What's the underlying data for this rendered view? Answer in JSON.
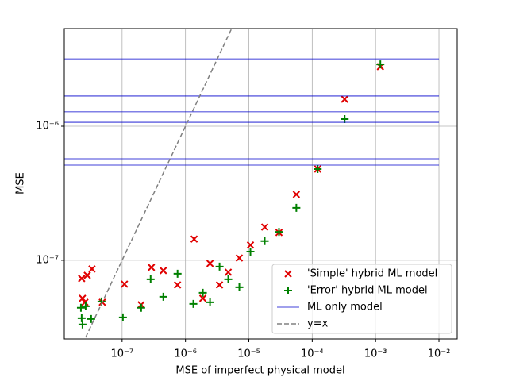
{
  "chart_data": {
    "type": "scatter",
    "x_label": "MSE of imperfect physical model",
    "y_label": "MSE",
    "log_x": true,
    "log_y": true,
    "grid": true,
    "legend": "lower right",
    "xlim": [
      1.224e-08,
      0.0194
    ],
    "ylim": [
      2.59e-08,
      5.35e-06
    ],
    "xticks": [
      {
        "value": 1e-07,
        "label": "10⁻⁷"
      },
      {
        "value": 1e-06,
        "label": "10⁻⁶"
      },
      {
        "value": 1e-05,
        "label": "10⁻⁵"
      },
      {
        "value": 0.0001,
        "label": "10⁻⁴"
      },
      {
        "value": 0.001,
        "label": "10⁻³"
      },
      {
        "value": 0.01,
        "label": "10⁻²"
      }
    ],
    "yticks": [
      {
        "value": 1e-07,
        "label": "10⁻⁷"
      },
      {
        "value": 1e-06,
        "label": "10⁻⁶"
      }
    ],
    "series": [
      {
        "name": "'Simple' hybrid ML model",
        "color": "#e00000",
        "marker": "x",
        "x": [
          2.3e-08,
          2.37e-08,
          2.59e-08,
          2.82e-08,
          3.35e-08,
          4.87e-08,
          1.09e-07,
          2e-07,
          2.9e-07,
          4.47e-07,
          7.5e-07,
          1.37e-06,
          1.88e-06,
          2.44e-06,
          3.45e-06,
          4.73e-06,
          7.08e-06,
          1.06e-05,
          1.78e-05,
          2.99e-05,
          5.62e-05,
          0.000122,
          0.000325,
          0.00119
        ],
        "values": [
          7.31e-08,
          5.2e-08,
          4.86e-08,
          7.72e-08,
          8.61e-08,
          4.86e-08,
          6.64e-08,
          4.66e-08,
          8.85e-08,
          8.38e-08,
          6.55e-08,
          1.44e-07,
          5.2e-08,
          9.47e-08,
          6.55e-08,
          8.15e-08,
          1.04e-07,
          1.3e-07,
          1.77e-07,
          1.61e-07,
          3.1e-07,
          4.79e-07,
          1.59e-06,
          2.78e-06
        ]
      },
      {
        "name": "'Error' hybrid ML model",
        "color": "#008000",
        "marker": "+",
        "x": [
          2.24e-08,
          2.3e-08,
          2.37e-08,
          2.66e-08,
          3.25e-08,
          4.73e-08,
          1.03e-07,
          2e-07,
          2.82e-07,
          4.47e-07,
          7.5e-07,
          1.33e-06,
          1.88e-06,
          2.44e-06,
          3.45e-06,
          4.73e-06,
          7.08e-06,
          1.06e-05,
          1.78e-05,
          2.99e-05,
          5.62e-05,
          0.000122,
          0.000325,
          0.00119
        ],
        "values": [
          4.42e-08,
          3.7e-08,
          3.32e-08,
          4.54e-08,
          3.65e-08,
          4.92e-08,
          3.75e-08,
          4.42e-08,
          7.21e-08,
          5.34e-08,
          7.93e-08,
          4.73e-08,
          5.72e-08,
          4.86e-08,
          8.97e-08,
          7.21e-08,
          6.29e-08,
          1.16e-07,
          1.39e-07,
          1.63e-07,
          2.46e-07,
          4.79e-07,
          1.13e-06,
          2.89e-06
        ]
      },
      {
        "name": "ML only model",
        "color": "#0000cc",
        "marker": "hline",
        "values": [
          3.18e-06,
          1.68e-06,
          1.28e-06,
          1.07e-06,
          5.72e-07,
          5.13e-07
        ]
      },
      {
        "name": "y=x",
        "color": "#808080",
        "marker": "identity"
      }
    ]
  }
}
